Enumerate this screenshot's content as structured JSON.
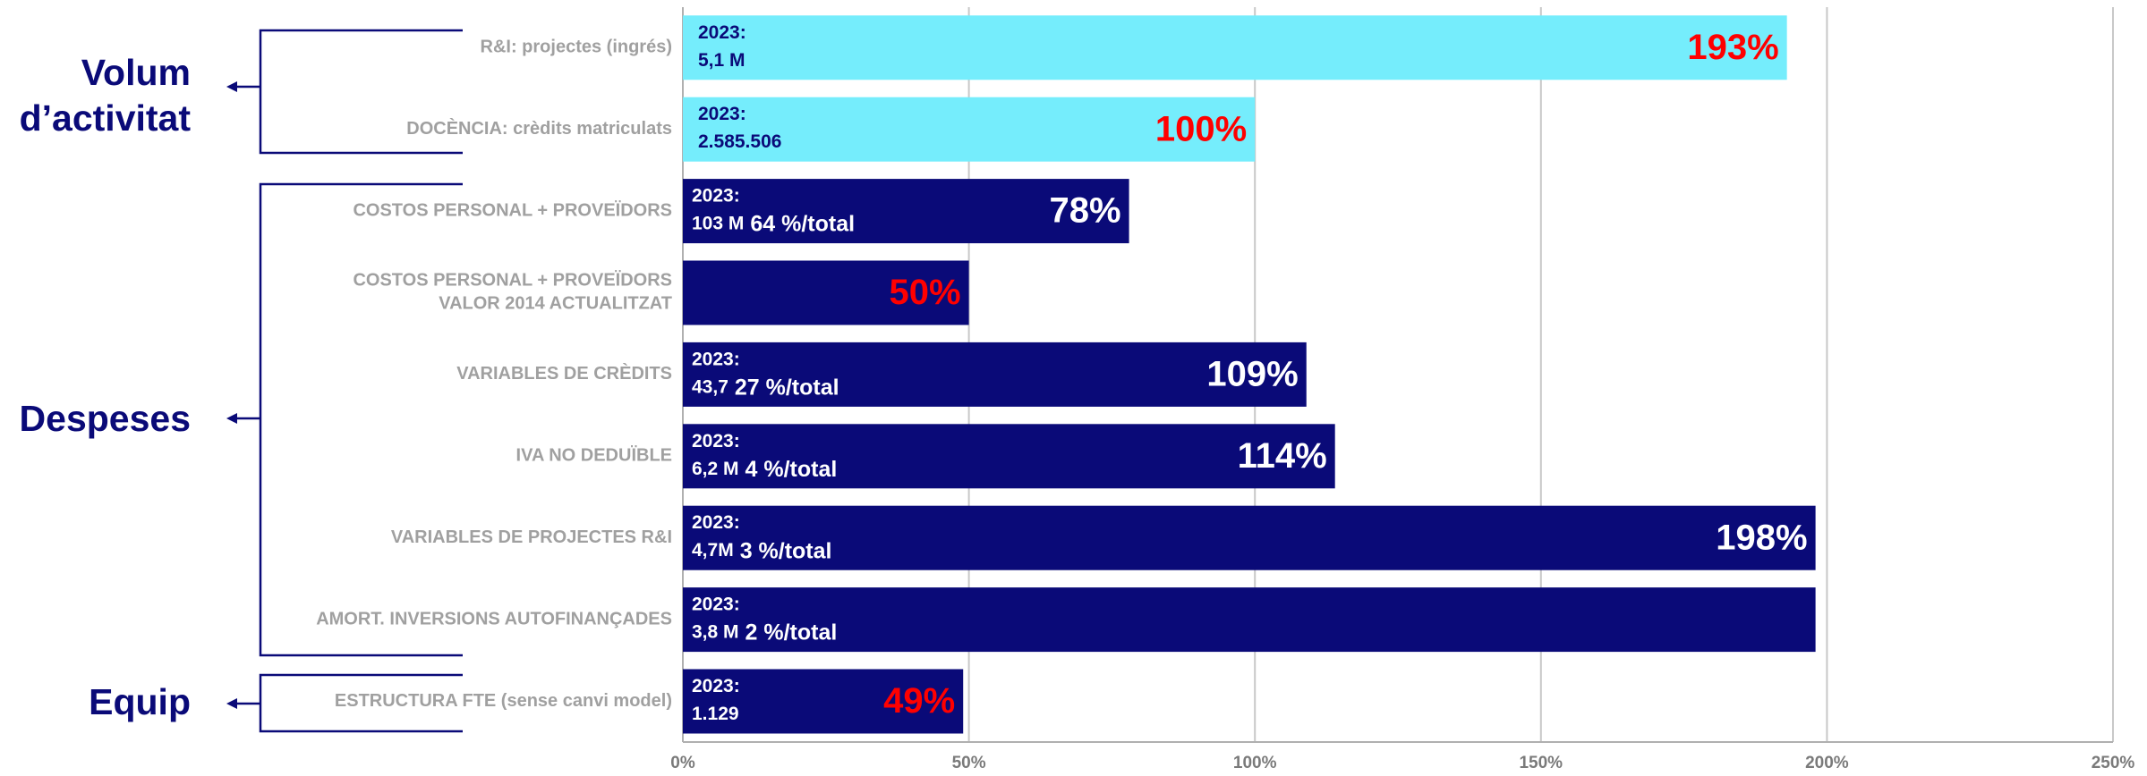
{
  "chart_data": {
    "type": "barh",
    "categories": [
      "R&I: projectes (ingrés)",
      "DOCÈNCIA: crèdits matriculats",
      "COSTOS PERSONAL + PROVEÏDORS",
      "COSTOS PERSONAL + PROVEÏDORS\nVALOR 2014 ACTUALITZAT",
      "VARIABLES DE CRÈDITS",
      "IVA NO DEDUÏBLE",
      "VARIABLES DE PROJECTES R&I",
      "AMORT. INVERSIONS AUTOFINANÇADES",
      "ESTRUCTURA FTE (sense canvi model)"
    ],
    "values": [
      193,
      100,
      78,
      50,
      109,
      114,
      198,
      198,
      49
    ],
    "value_labels": [
      "193%",
      "100%",
      "78%",
      "50%",
      "109%",
      "114%",
      "198%",
      null,
      "49%"
    ],
    "colors": [
      "#75edfc",
      "#75edfc",
      "#0a0a78",
      "#0a0a78",
      "#0a0a78",
      "#0a0a78",
      "#0a0a78",
      "#0a0a78",
      "#0a0a78"
    ],
    "label_colors": [
      "#ff0000",
      "#ff0000",
      "#ffffff",
      "#ff0000",
      "#ffffff",
      "#ffffff",
      "#ffffff",
      null,
      "#ff0000"
    ],
    "bar_notes": [
      {
        "year": "2023:",
        "amount": "5,1 M"
      },
      {
        "year": "2023:",
        "amount": "2.585.506"
      },
      {
        "year": "2023:",
        "amount": "103 M",
        "share": "64 %/total"
      },
      null,
      {
        "year": "2023:",
        "amount": "43,7",
        "share": "27 %/total"
      },
      {
        "year": "2023:",
        "amount": "6,2 M",
        "share": "4 %/total"
      },
      {
        "year": "2023:",
        "amount": "4,7M",
        "share": "3 %/total"
      },
      {
        "year": "2023:",
        "amount": "3,8 M",
        "share": "2 %/total"
      },
      {
        "year": "2023:",
        "amount": "1.129"
      }
    ],
    "groups": [
      [
        "Volum",
        "d’activitat"
      ],
      [
        "Despeses"
      ],
      [
        "Equip"
      ]
    ],
    "xlim": [
      0,
      250
    ],
    "xticks": [
      {
        "value": 0,
        "label": "0%"
      },
      {
        "value": 50,
        "label": "50%"
      },
      {
        "value": 100,
        "label": "100%"
      },
      {
        "value": 150,
        "label": "150%"
      },
      {
        "value": 200,
        "label": "200%"
      },
      {
        "value": 250,
        "label": "250%"
      }
    ],
    "grid": true
  }
}
